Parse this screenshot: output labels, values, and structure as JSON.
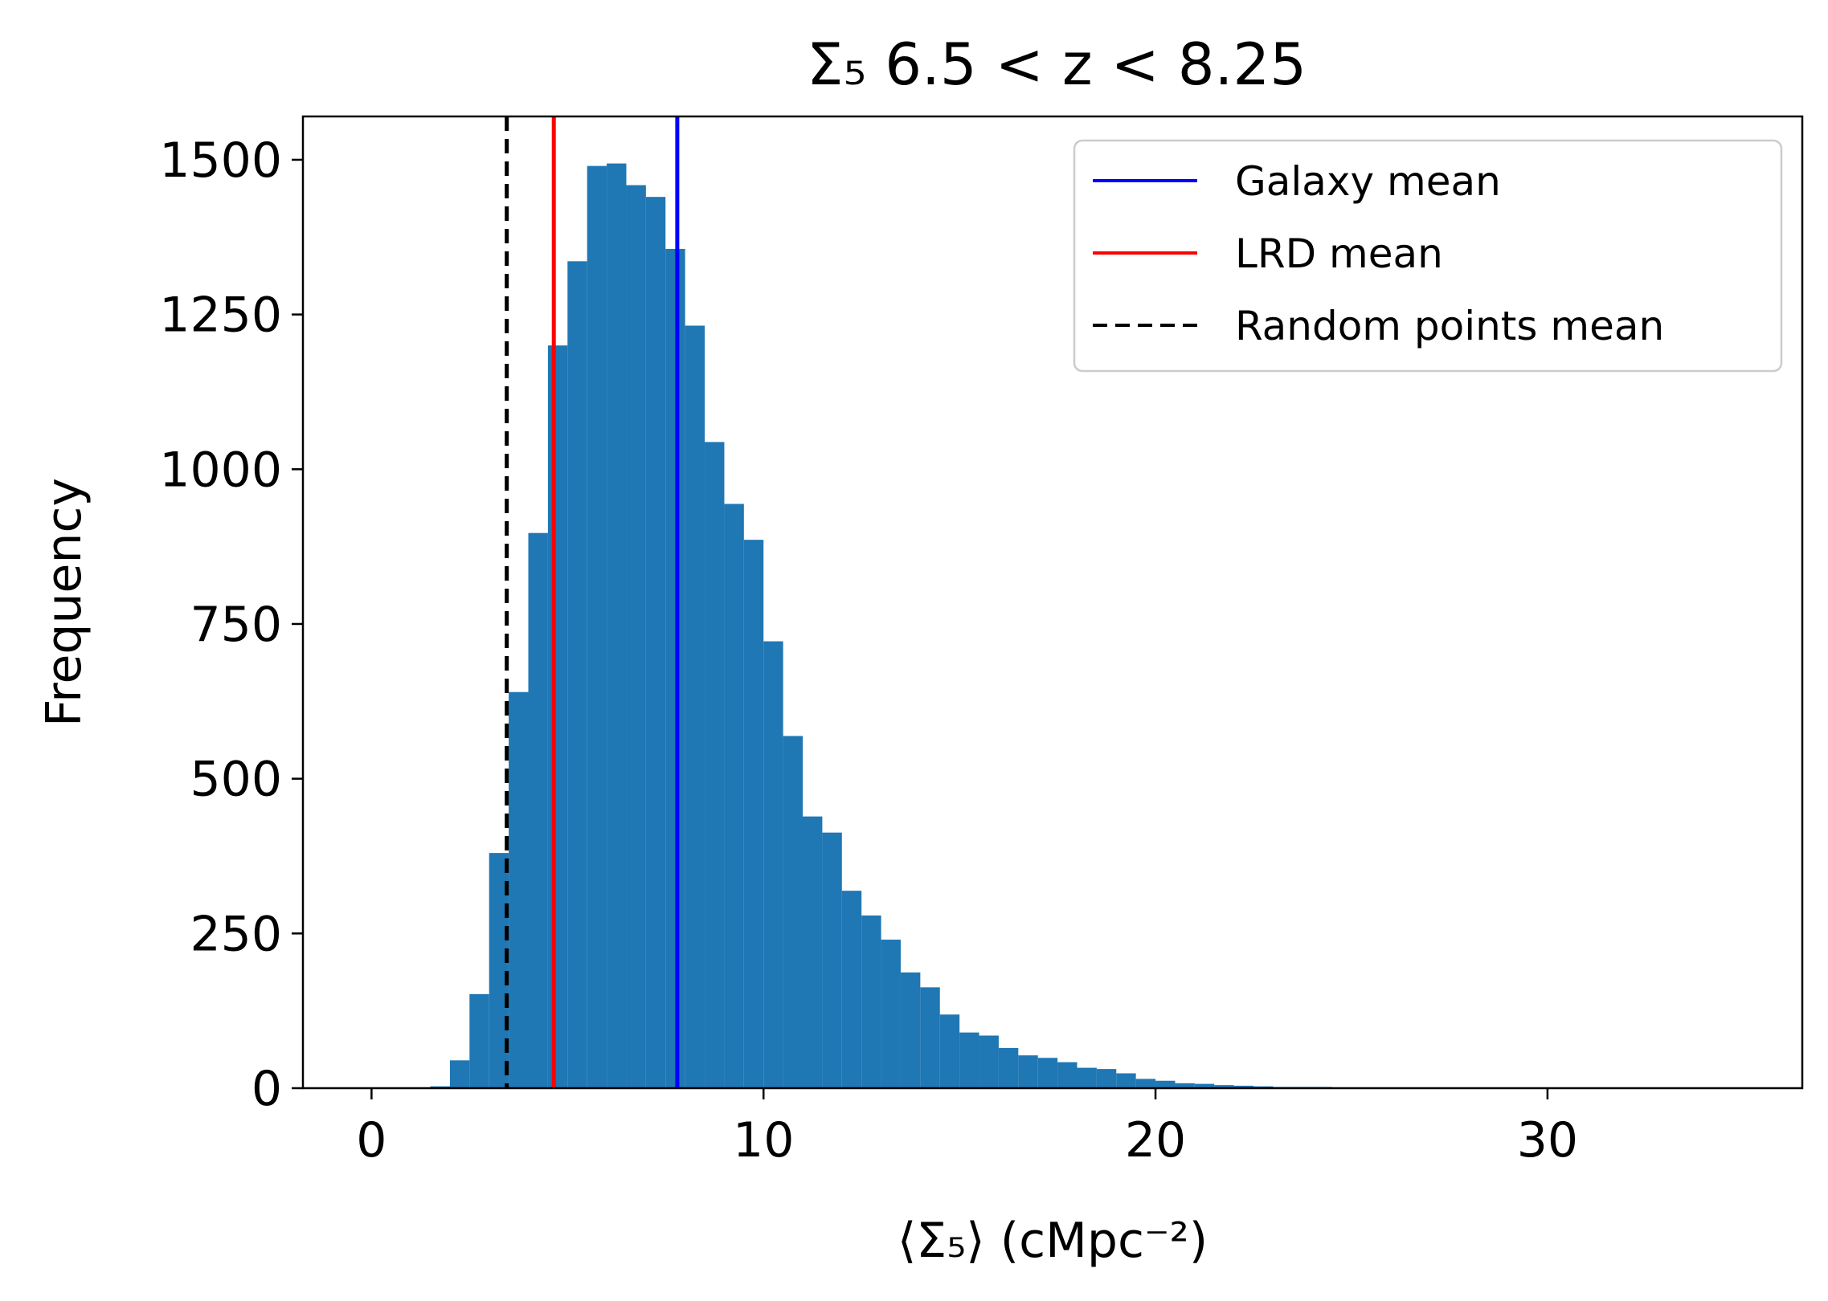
{
  "chart_data": {
    "type": "bar",
    "subtype": "histogram",
    "title": "Σ₅ 6.5 < z < 8.25",
    "xlabel": "⟨Σ₅⟩ (cMpc⁻²)",
    "ylabel": "Frequency",
    "xlim": [
      -1.75,
      36.5
    ],
    "ylim": [
      0,
      1570
    ],
    "x_ticks": [
      0,
      10,
      20,
      30
    ],
    "y_ticks": [
      0,
      250,
      500,
      750,
      1000,
      1250,
      1500
    ],
    "grid": false,
    "legend_location": "upper right",
    "bar_color": "#1f77b4",
    "bin_width": 0.5,
    "bin_start": 1.5,
    "values": [
      3,
      45,
      152,
      380,
      640,
      897,
      1200,
      1336,
      1490,
      1494,
      1459,
      1440,
      1356,
      1232,
      1044,
      944,
      886,
      722,
      569,
      439,
      413,
      319,
      279,
      240,
      187,
      163,
      119,
      90,
      85,
      65,
      53,
      49,
      42,
      33,
      31,
      24,
      15,
      12,
      8,
      7,
      5,
      4,
      3,
      2,
      2,
      2,
      1,
      1
    ],
    "vertical_lines": [
      {
        "label": "Galaxy mean",
        "x": 7.8,
        "color": "#0000ff",
        "style": "solid"
      },
      {
        "label": "LRD mean",
        "x": 4.65,
        "color": "#ff0000",
        "style": "solid"
      },
      {
        "label": "Random points mean",
        "x": 3.45,
        "color": "#000000",
        "style": "dashed"
      }
    ]
  }
}
